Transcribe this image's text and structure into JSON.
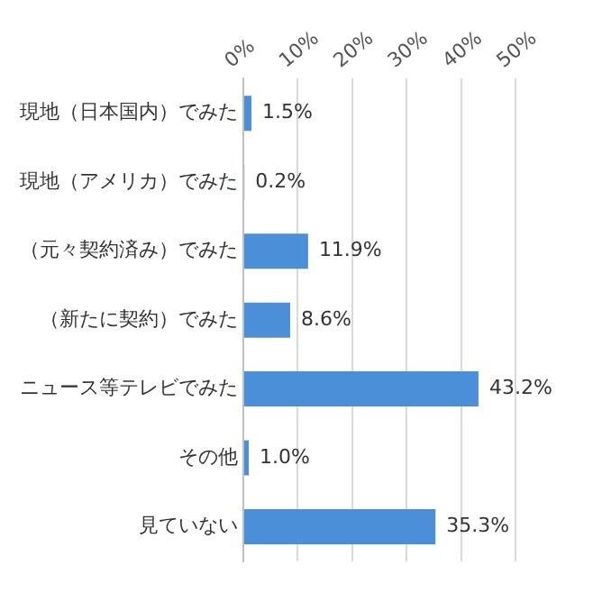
{
  "chart_data": {
    "type": "bar",
    "orientation": "horizontal",
    "categories": [
      "現地（日本国内）でみた",
      "現地（アメリカ）でみた",
      "（元々契約済み）でみた",
      "（新たに契約）でみた",
      "ニュース等テレビでみた",
      "その他",
      "見ていない"
    ],
    "values": [
      1.5,
      0.2,
      11.9,
      8.6,
      43.2,
      1.0,
      35.3
    ],
    "value_labels": [
      "1.5%",
      "0.2%",
      "11.9%",
      "8.6%",
      "43.2%",
      "1.0%",
      "35.3%"
    ],
    "color": "#4a8fd8",
    "xlim": [
      0,
      50
    ],
    "xticks": [
      {
        "value": 0,
        "label": "0%"
      },
      {
        "value": 10,
        "label": "10%"
      },
      {
        "value": 20,
        "label": "20%"
      },
      {
        "value": 30,
        "label": "30%"
      },
      {
        "value": 40,
        "label": "40%"
      },
      {
        "value": 50,
        "label": "50%"
      }
    ],
    "grid": "x",
    "legend": false
  }
}
